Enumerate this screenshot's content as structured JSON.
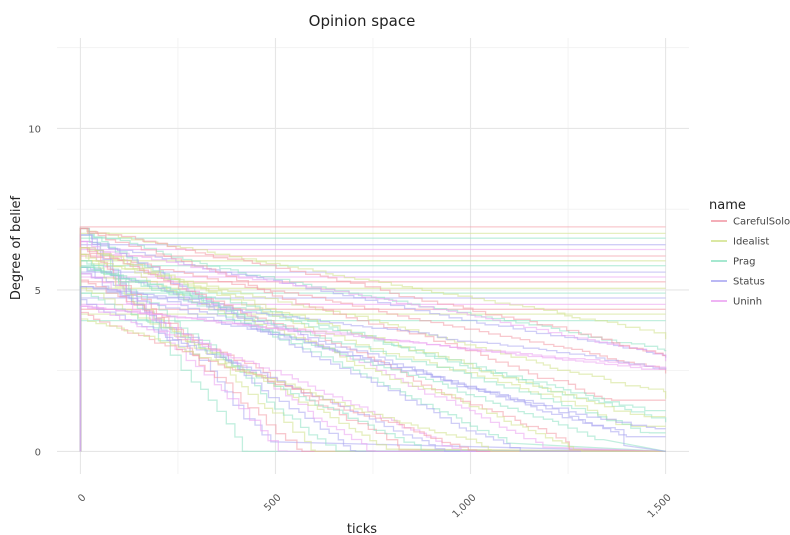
{
  "chart_data": {
    "type": "line",
    "title": "Opinion space",
    "xlabel": "ticks",
    "ylabel": "Degree of belief",
    "xlim": [
      -60,
      1560
    ],
    "ylim": [
      -0.7,
      12.8
    ],
    "x_ticks": [
      0,
      500,
      1000,
      1500
    ],
    "x_tick_labels": [
      "0",
      "500",
      "1,000",
      "1,500"
    ],
    "y_ticks": [
      0,
      5,
      10
    ],
    "y_tick_labels": [
      "0",
      "5",
      "10"
    ],
    "grid": true,
    "legend_title": "name",
    "legend_position": "right",
    "groups": [
      {
        "name": "CarefulSolo",
        "color": "#f29aa6"
      },
      {
        "name": "Idealist",
        "color": "#d2e28c"
      },
      {
        "name": "Prag",
        "color": "#8fe2c4"
      },
      {
        "name": "Status",
        "color": "#a9a6f1"
      },
      {
        "name": "Uninh",
        "color": "#eba2f1"
      }
    ],
    "series_note_values": {
      "x_start": 0,
      "x_end": 1500,
      "start_values": [
        6.9,
        6.7,
        6.5,
        6.3,
        6.1,
        5.9,
        5.7,
        5.5,
        5.3,
        5.1,
        4.9,
        4.7,
        4.5,
        4.3,
        4.1
      ],
      "flat_levels": [
        6.95,
        6.75,
        6.6,
        6.4,
        6.25,
        6.05,
        5.9,
        5.75,
        5.55,
        5.4,
        5.25,
        5.05,
        4.9,
        4.75,
        4.55,
        4.4,
        4.25,
        4.05
      ],
      "declining_end_values_at_1500": [
        3.4,
        3.1,
        2.9,
        2.6,
        2.4,
        1.6,
        0.9,
        0.4
      ]
    }
  }
}
